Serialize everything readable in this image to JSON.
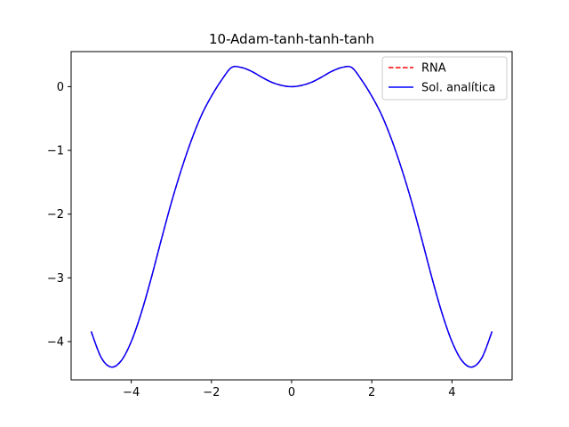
{
  "chart_data": {
    "type": "line",
    "title": "10-Adam-tanh-tanh-tanh",
    "xlabel": "",
    "ylabel": "",
    "xlim": [
      -5.5,
      5.5
    ],
    "ylim": [
      -4.6,
      0.55
    ],
    "xticks": [
      -4,
      -2,
      0,
      2,
      4
    ],
    "xtick_labels": [
      "−4",
      "−2",
      "0",
      "2",
      "4"
    ],
    "yticks": [
      0,
      -1,
      -2,
      -3,
      -4
    ],
    "ytick_labels": [
      "0",
      "−1",
      "−2",
      "−3",
      "−4"
    ],
    "grid": false,
    "legend_position": "top-right",
    "series": [
      {
        "name": "RNA",
        "color": "#ff0000",
        "style": "dashed",
        "x": [
          -5,
          -4.75,
          -4.5,
          -4.25,
          -4,
          -3.75,
          -3.5,
          -3.25,
          -3,
          -2.75,
          -2.5,
          -2.25,
          -2,
          -1.75,
          -1.5,
          -1.25,
          -1,
          -0.75,
          -0.5,
          -0.25,
          0,
          0.25,
          0.5,
          0.75,
          1,
          1.25,
          1.5,
          1.75,
          2,
          2.25,
          2.5,
          2.75,
          3,
          3.25,
          3.5,
          3.75,
          4,
          4.25,
          4.5,
          4.75,
          5
        ],
        "y": [
          -3.84,
          -4.25,
          -4.4,
          -4.3,
          -4.0,
          -3.55,
          -3.0,
          -2.4,
          -1.82,
          -1.3,
          -0.84,
          -0.45,
          -0.15,
          0.1,
          0.3,
          0.3,
          0.24,
          0.15,
          0.07,
          0.02,
          0.0,
          0.02,
          0.07,
          0.15,
          0.24,
          0.3,
          0.3,
          0.1,
          -0.15,
          -0.45,
          -0.84,
          -1.3,
          -1.82,
          -2.4,
          -3.0,
          -3.55,
          -4.0,
          -4.3,
          -4.4,
          -4.25,
          -3.84
        ]
      },
      {
        "name": "Sol. analítica",
        "color": "#0000ff",
        "style": "solid",
        "x": [
          -5,
          -4.75,
          -4.5,
          -4.25,
          -4,
          -3.75,
          -3.5,
          -3.25,
          -3,
          -2.75,
          -2.5,
          -2.25,
          -2,
          -1.75,
          -1.5,
          -1.25,
          -1,
          -0.75,
          -0.5,
          -0.25,
          0,
          0.25,
          0.5,
          0.75,
          1,
          1.25,
          1.5,
          1.75,
          2,
          2.25,
          2.5,
          2.75,
          3,
          3.25,
          3.5,
          3.75,
          4,
          4.25,
          4.5,
          4.75,
          5
        ],
        "y": [
          -3.84,
          -4.25,
          -4.4,
          -4.3,
          -4.0,
          -3.55,
          -3.0,
          -2.4,
          -1.82,
          -1.3,
          -0.84,
          -0.45,
          -0.15,
          0.1,
          0.3,
          0.3,
          0.24,
          0.15,
          0.07,
          0.02,
          0.0,
          0.02,
          0.07,
          0.15,
          0.24,
          0.3,
          0.3,
          0.1,
          -0.15,
          -0.45,
          -0.84,
          -1.3,
          -1.82,
          -2.4,
          -3.0,
          -3.55,
          -4.0,
          -4.3,
          -4.4,
          -4.25,
          -3.84
        ]
      }
    ]
  }
}
